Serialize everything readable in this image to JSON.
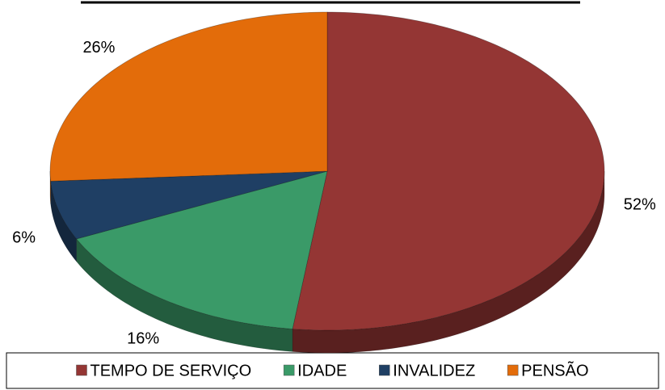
{
  "chart_data": {
    "type": "pie",
    "categories": [
      "TEMPO DE SERVIÇO",
      "IDADE",
      "INVALIDEZ",
      "PENSÃO"
    ],
    "values": [
      52,
      16,
      6,
      26
    ],
    "value_labels": [
      "52%",
      "16%",
      "6%",
      "26%"
    ],
    "colors": [
      "#943634",
      "#3a9a68",
      "#1f3f64",
      "#e36c0a"
    ],
    "legend": "bottom"
  }
}
